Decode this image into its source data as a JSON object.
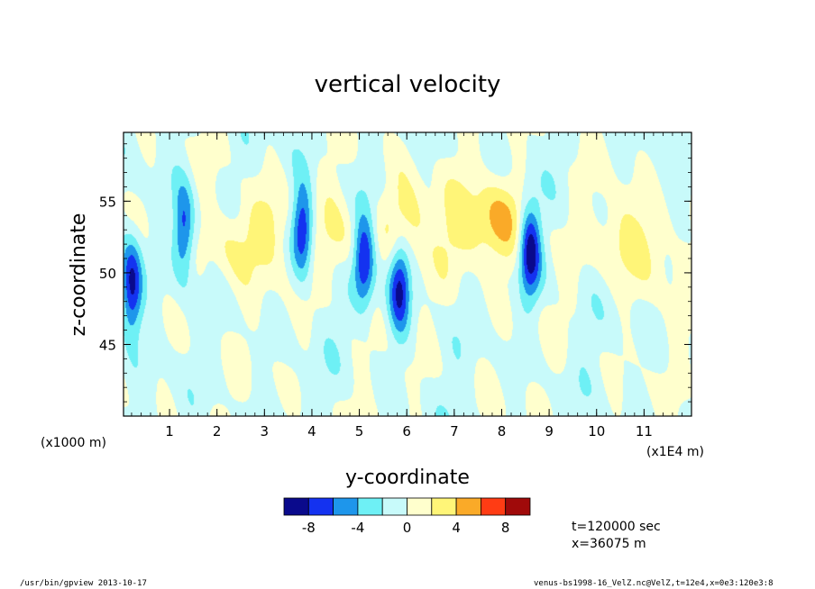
{
  "chart_data": {
    "type": "heatmap",
    "title": "vertical velocity",
    "xlabel": "y-coordinate",
    "ylabel": "z-coordinate",
    "x_tick_labels": [
      "1",
      "2",
      "3",
      "4",
      "5",
      "6",
      "7",
      "8",
      "9",
      "10",
      "11"
    ],
    "x_ticks": [
      1,
      2,
      3,
      4,
      5,
      6,
      7,
      8,
      9,
      10,
      11
    ],
    "x_range": [
      0.03,
      12
    ],
    "x_unit_left": "(x1000 m)",
    "x_unit_right": "(x1E4 m)",
    "y_tick_labels": [
      "45",
      "50",
      "55"
    ],
    "y_ticks": [
      45,
      50,
      55
    ],
    "y_range": [
      40,
      59.8
    ],
    "colorbar": {
      "levels": [
        -10,
        -8,
        -6,
        -4,
        -2,
        0,
        2,
        4,
        6,
        8,
        10
      ],
      "tick_labels": [
        "-8",
        "-4",
        "0",
        "4",
        "8"
      ],
      "tick_values": [
        -8,
        -4,
        0,
        4,
        8
      ],
      "colors": [
        "#0a0a8c",
        "#1432f0",
        "#1e96eb",
        "#6ef0f5",
        "#c8fafa",
        "#ffffcd",
        "#fff578",
        "#faaa28",
        "#ff3c14",
        "#a00a0a"
      ]
    },
    "field_features": [
      {
        "y": 0.2,
        "z": 49.0,
        "amp": -9.0
      },
      {
        "y": 1.3,
        "z": 53.0,
        "amp": -7.0
      },
      {
        "y": 3.8,
        "z": 53.0,
        "amp": -8.0
      },
      {
        "y": 5.1,
        "z": 51.0,
        "amp": -8.0
      },
      {
        "y": 5.85,
        "z": 49.0,
        "amp": -8.0
      },
      {
        "y": 8.6,
        "z": 51.5,
        "amp": -9.0
      },
      {
        "y": 2.3,
        "z": 52.0,
        "amp": 3.0
      },
      {
        "y": 3.1,
        "z": 53.0,
        "amp": 3.0
      },
      {
        "y": 4.6,
        "z": 52.0,
        "amp": 2.5
      },
      {
        "y": 7.2,
        "z": 53.0,
        "amp": 3.0
      },
      {
        "y": 7.95,
        "z": 53.5,
        "amp": 5.0
      },
      {
        "y": 10.5,
        "z": 52.5,
        "amp": 3.0
      },
      {
        "y": 6.0,
        "z": 54.0,
        "amp": 4.0
      },
      {
        "y": 11.2,
        "z": 51.5,
        "amp": 2.5
      }
    ]
  },
  "info": {
    "time": "t=120000 sec",
    "xpos": "x=36075 m"
  },
  "footer": {
    "left": "/usr/bin/gpview   2013-10-17",
    "right": "venus-bs1998-16_VelZ.nc@VelZ,t=12e4,x=0e3:120e3:8"
  }
}
